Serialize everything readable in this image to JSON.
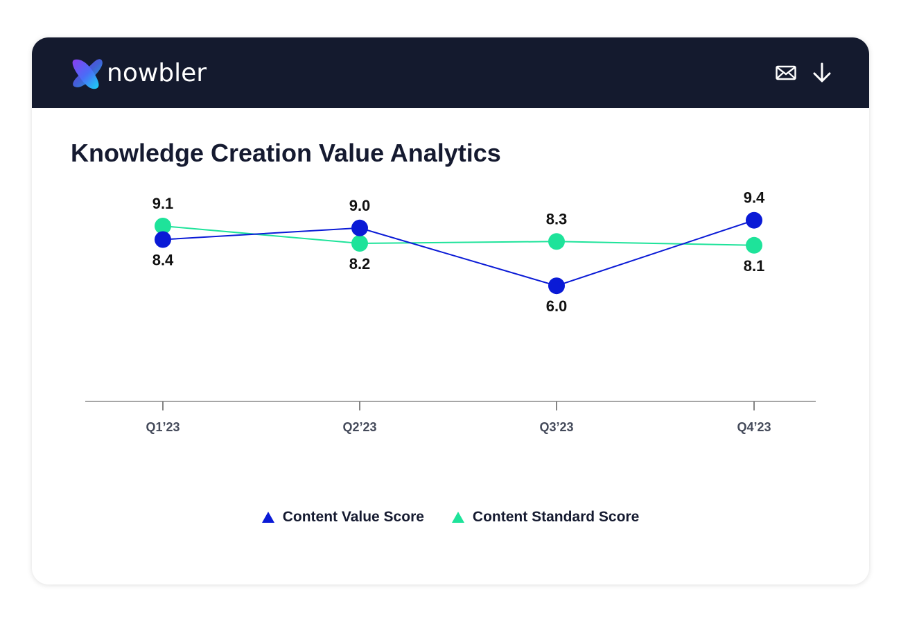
{
  "header": {
    "brand": "nowbler",
    "icons": [
      "mail-icon",
      "download-icon"
    ]
  },
  "colors": {
    "header_bg": "#141a2e",
    "series_value": "#0a1ad6",
    "series_standard": "#1ee39a",
    "axis": "#888888",
    "text_dark": "#151a30"
  },
  "chart_data": {
    "type": "line",
    "title": "Knowledge Creation Value Analytics",
    "categories": [
      "Q1’23",
      "Q2’23",
      "Q3’23",
      "Q4’23"
    ],
    "ylim": [
      0,
      12
    ],
    "grid": false,
    "legend_position": "bottom-center",
    "series": [
      {
        "name": "Content Value Score",
        "color": "#0a1ad6",
        "values": [
          8.4,
          9.0,
          6.0,
          9.4
        ],
        "labels": [
          "8.4",
          "9.0",
          "6.0",
          "9.4"
        ],
        "label_side": [
          "below",
          "above",
          "below",
          "above"
        ]
      },
      {
        "name": "Content Standard Score",
        "color": "#1ee39a",
        "values": [
          9.1,
          8.2,
          8.3,
          8.1
        ],
        "labels": [
          "9.1",
          "8.2",
          "8.3",
          "8.1"
        ],
        "label_side": [
          "above",
          "below",
          "above",
          "below"
        ]
      }
    ]
  }
}
